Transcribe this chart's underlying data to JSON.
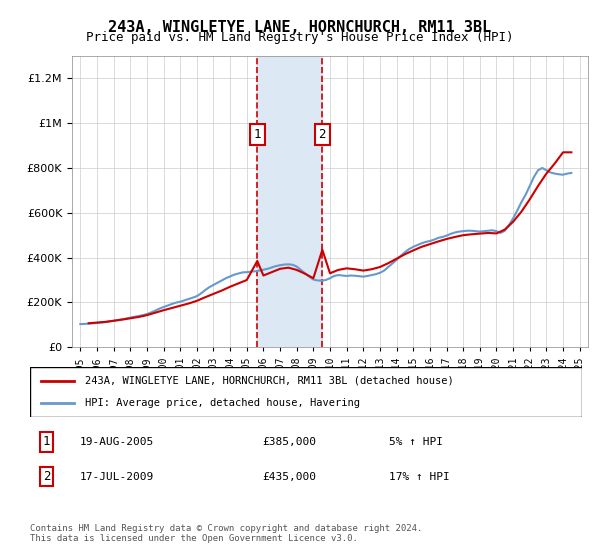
{
  "title": "243A, WINGLETYE LANE, HORNCHURCH, RM11 3BL",
  "subtitle": "Price paid vs. HM Land Registry's House Price Index (HPI)",
  "legend_line1": "243A, WINGLETYE LANE, HORNCHURCH, RM11 3BL (detached house)",
  "legend_line2": "HPI: Average price, detached house, Havering",
  "transaction1_label": "1",
  "transaction1_date": "19-AUG-2005",
  "transaction1_price": 385000,
  "transaction1_year": 2005.63,
  "transaction2_label": "2",
  "transaction2_date": "17-JUL-2009",
  "transaction2_price": 435000,
  "transaction2_year": 2009.54,
  "footnote": "Contains HM Land Registry data © Crown copyright and database right 2024.\nThis data is licensed under the Open Government Licence v3.0.",
  "table_row1": "1    19-AUG-2005         £385,000        5% ↑ HPI",
  "table_row2": "2    17-JUL-2009         £435,000        17% ↑ HPI",
  "ylim": [
    0,
    1300000
  ],
  "xlim": [
    1994.5,
    2025.5
  ],
  "line_color_red": "#cc0000",
  "line_color_blue": "#6699cc",
  "shade_color": "#dce9f5",
  "transaction_box_color": "#cc0000",
  "background_color": "#ffffff",
  "grid_color": "#cccccc",
  "hpi_data_x": [
    1995.0,
    1995.25,
    1995.5,
    1995.75,
    1996.0,
    1996.25,
    1996.5,
    1996.75,
    1997.0,
    1997.25,
    1997.5,
    1997.75,
    1998.0,
    1998.25,
    1998.5,
    1998.75,
    1999.0,
    1999.25,
    1999.5,
    1999.75,
    2000.0,
    2000.25,
    2000.5,
    2000.75,
    2001.0,
    2001.25,
    2001.5,
    2001.75,
    2002.0,
    2002.25,
    2002.5,
    2002.75,
    2003.0,
    2003.25,
    2003.5,
    2003.75,
    2004.0,
    2004.25,
    2004.5,
    2004.75,
    2005.0,
    2005.25,
    2005.5,
    2005.75,
    2006.0,
    2006.25,
    2006.5,
    2006.75,
    2007.0,
    2007.25,
    2007.5,
    2007.75,
    2008.0,
    2008.25,
    2008.5,
    2008.75,
    2009.0,
    2009.25,
    2009.5,
    2009.75,
    2010.0,
    2010.25,
    2010.5,
    2010.75,
    2011.0,
    2011.25,
    2011.5,
    2011.75,
    2012.0,
    2012.25,
    2012.5,
    2012.75,
    2013.0,
    2013.25,
    2013.5,
    2013.75,
    2014.0,
    2014.25,
    2014.5,
    2014.75,
    2015.0,
    2015.25,
    2015.5,
    2015.75,
    2016.0,
    2016.25,
    2016.5,
    2016.75,
    2017.0,
    2017.25,
    2017.5,
    2017.75,
    2018.0,
    2018.25,
    2018.5,
    2018.75,
    2019.0,
    2019.25,
    2019.5,
    2019.75,
    2020.0,
    2020.25,
    2020.5,
    2020.75,
    2021.0,
    2021.25,
    2021.5,
    2021.75,
    2022.0,
    2022.25,
    2022.5,
    2022.75,
    2023.0,
    2023.25,
    2023.5,
    2023.75,
    2024.0,
    2024.25,
    2024.5
  ],
  "hpi_data_y": [
    103000,
    104000,
    105000,
    106500,
    108000,
    110000,
    112000,
    115000,
    118000,
    121000,
    124500,
    128000,
    132000,
    136000,
    139000,
    143000,
    148000,
    155000,
    163000,
    172000,
    179000,
    186000,
    193000,
    199000,
    203000,
    209000,
    215000,
    221000,
    228000,
    240000,
    255000,
    268000,
    278000,
    288000,
    298000,
    308000,
    316000,
    324000,
    329000,
    334000,
    335000,
    337000,
    339000,
    342000,
    346000,
    350000,
    356000,
    362000,
    366000,
    369000,
    370000,
    368000,
    360000,
    345000,
    330000,
    315000,
    302000,
    298000,
    297000,
    300000,
    308000,
    318000,
    322000,
    320000,
    318000,
    320000,
    319000,
    317000,
    315000,
    318000,
    322000,
    326000,
    332000,
    342000,
    358000,
    374000,
    390000,
    408000,
    424000,
    438000,
    448000,
    456000,
    464000,
    470000,
    474000,
    480000,
    488000,
    492000,
    498000,
    506000,
    512000,
    516000,
    518000,
    520000,
    520000,
    518000,
    516000,
    518000,
    520000,
    522000,
    518000,
    510000,
    520000,
    545000,
    575000,
    610000,
    648000,
    680000,
    720000,
    760000,
    790000,
    800000,
    790000,
    780000,
    775000,
    772000,
    770000,
    775000,
    778000
  ],
  "price_paid_x": [
    1995.5,
    1996.0,
    1996.5,
    1997.0,
    1997.5,
    1998.0,
    1998.5,
    1999.0,
    1999.5,
    2000.0,
    2000.5,
    2001.0,
    2001.5,
    2002.0,
    2002.5,
    2003.0,
    2003.5,
    2004.0,
    2004.5,
    2005.0,
    2005.63,
    2006.0,
    2006.5,
    2007.0,
    2007.5,
    2008.0,
    2008.5,
    2009.0,
    2009.54,
    2010.0,
    2010.5,
    2011.0,
    2011.5,
    2012.0,
    2012.5,
    2013.0,
    2013.5,
    2014.0,
    2014.5,
    2015.0,
    2015.5,
    2016.0,
    2016.5,
    2017.0,
    2017.5,
    2018.0,
    2018.5,
    2019.0,
    2019.5,
    2020.0,
    2020.5,
    2021.0,
    2021.5,
    2022.0,
    2022.5,
    2023.0,
    2023.5,
    2024.0,
    2024.5
  ],
  "price_paid_y": [
    107000,
    110000,
    113000,
    118000,
    123000,
    129000,
    135000,
    143000,
    154000,
    165000,
    175000,
    185000,
    195000,
    207000,
    223000,
    238000,
    253000,
    270000,
    285000,
    300000,
    385000,
    320000,
    335000,
    350000,
    355000,
    345000,
    328000,
    308000,
    435000,
    330000,
    345000,
    352000,
    348000,
    342000,
    348000,
    358000,
    375000,
    395000,
    415000,
    432000,
    448000,
    460000,
    472000,
    483000,
    492000,
    500000,
    504000,
    507000,
    510000,
    508000,
    525000,
    560000,
    605000,
    660000,
    720000,
    775000,
    820000,
    870000,
    870000
  ]
}
